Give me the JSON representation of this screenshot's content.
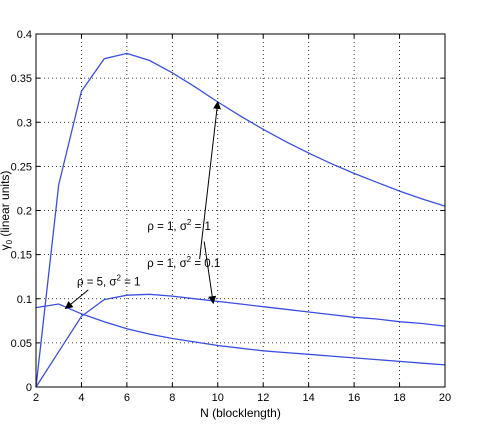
{
  "chart_data": {
    "type": "line",
    "title": "",
    "xlabel": "N (blocklength)",
    "ylabel_main": "γ",
    "ylabel_sub": "0",
    "ylabel_rest": " (linear units)",
    "xlim": [
      2,
      20
    ],
    "ylim": [
      0,
      0.4
    ],
    "xticks": [
      2,
      4,
      6,
      8,
      10,
      12,
      14,
      16,
      18,
      20
    ],
    "yticks": [
      0,
      0.05,
      0.1,
      0.15,
      0.2,
      0.25,
      0.3,
      0.35,
      0.4
    ],
    "xtick_labels": [
      "2",
      "4",
      "6",
      "8",
      "10",
      "12",
      "14",
      "16",
      "18",
      "20"
    ],
    "ytick_labels": [
      "0",
      "0.05",
      "0.1",
      "0.15",
      "0.2",
      "0.25",
      "0.3",
      "0.35",
      "0.4"
    ],
    "grid": true,
    "line_color": "#3a4fe0",
    "series": [
      {
        "name": "ρ = 1, σ² = 0.1",
        "x": [
          2,
          3,
          4,
          5,
          6,
          7,
          8,
          9,
          10,
          11,
          12,
          13,
          14,
          15,
          16,
          17,
          18,
          19,
          20
        ],
        "y": [
          0,
          0.229,
          0.335,
          0.372,
          0.378,
          0.37,
          0.356,
          0.34,
          0.323,
          0.307,
          0.292,
          0.278,
          0.265,
          0.253,
          0.242,
          0.232,
          0.222,
          0.213,
          0.205
        ]
      },
      {
        "name": "ρ = 1, σ² = 1",
        "x": [
          2,
          3,
          4,
          5,
          6,
          7,
          8,
          9,
          10,
          11,
          12,
          13,
          14,
          15,
          16,
          17,
          18,
          19,
          20
        ],
        "y": [
          0,
          0.04,
          0.08,
          0.099,
          0.104,
          0.105,
          0.103,
          0.1,
          0.097,
          0.094,
          0.091,
          0.088,
          0.085,
          0.082,
          0.079,
          0.077,
          0.074,
          0.072,
          0.069
        ]
      },
      {
        "name": "ρ = 5, σ² = 1",
        "x": [
          2,
          3,
          4,
          5,
          6,
          7,
          8,
          9,
          10,
          11,
          12,
          13,
          14,
          15,
          16,
          17,
          18,
          19,
          20
        ],
        "y": [
          0.09,
          0.094,
          0.083,
          0.074,
          0.066,
          0.06,
          0.055,
          0.051,
          0.047,
          0.044,
          0.041,
          0.039,
          0.037,
          0.035,
          0.033,
          0.031,
          0.029,
          0.027,
          0.025
        ]
      }
    ],
    "annotations": [
      {
        "label_main": "ρ = 1, σ",
        "label_sup": "2",
        "label_tail": " = 0.1",
        "text_at": [
          8.5,
          0.136
        ],
        "arrow_from": [
          9.2,
          0.145
        ],
        "arrow_to": [
          10.0,
          0.323
        ]
      },
      {
        "label_main": "ρ = 1, σ",
        "label_sup": "2",
        "label_tail": " = 1",
        "text_at": [
          8.3,
          0.178
        ],
        "arrow_from": [
          9.4,
          0.165
        ],
        "arrow_to": [
          9.8,
          0.095
        ]
      },
      {
        "label_main": "ρ = 5, σ",
        "label_sup": "2",
        "label_tail": " = 1",
        "text_at": [
          5.2,
          0.115
        ],
        "arrow_from": [
          4.3,
          0.11
        ],
        "arrow_to": [
          3.3,
          0.089
        ]
      }
    ]
  }
}
